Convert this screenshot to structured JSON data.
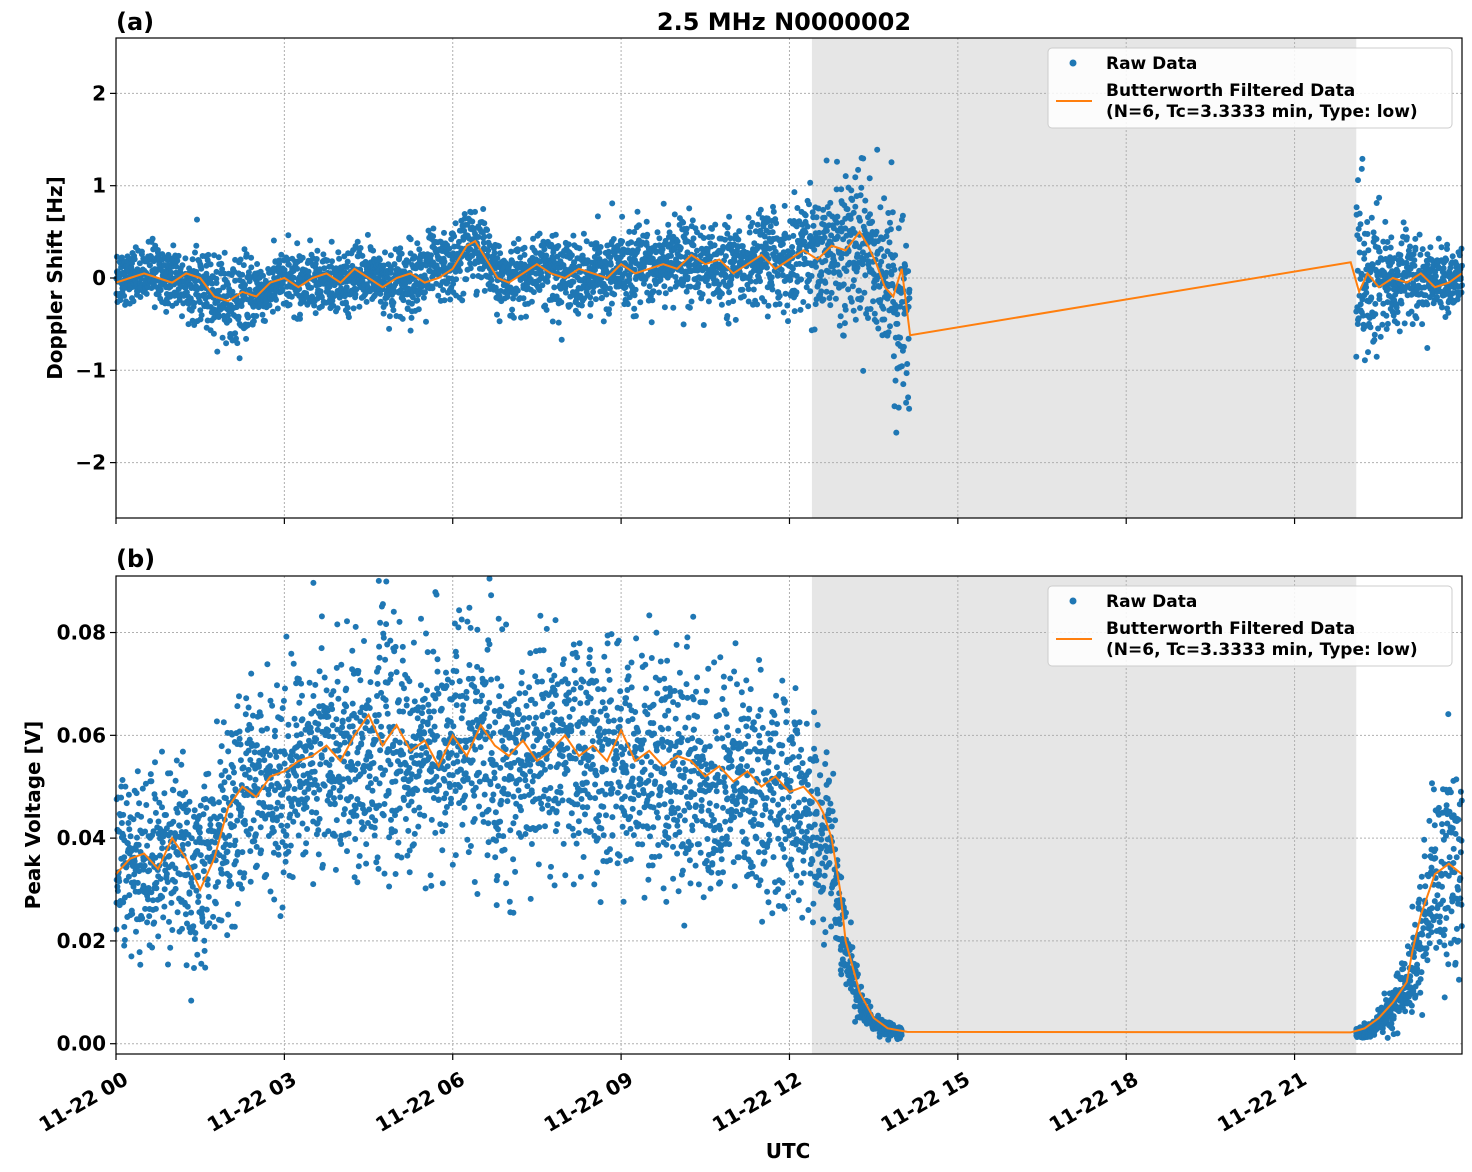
{
  "figure": {
    "title": "2.5 MHz N0000002",
    "xlabel": "UTC"
  },
  "colors": {
    "raw": "#1f77b4",
    "filtered": "#ff7f0e",
    "shade": "#e6e6e6",
    "grid": "#b0b0b0"
  },
  "chart_data": [
    {
      "type": "scatter",
      "panel_label": "(a)",
      "ylabel": "Doppler Shift [Hz]",
      "xlim": [
        "11-22 00:00",
        "11-22 23:59"
      ],
      "ylim": [
        -2.6,
        2.6
      ],
      "yticks": [
        -2,
        -1,
        0,
        1,
        2
      ],
      "ytick_labels": [
        "−2",
        "−1",
        "0",
        "1",
        "2"
      ],
      "xticks": [
        "11-22 00",
        "11-22 03",
        "11-22 06",
        "11-22 09",
        "11-22 12",
        "11-22 15",
        "11-22 18",
        "11-22 21"
      ],
      "grid": true,
      "legend_position": "top-right",
      "shaded_region": [
        "11-22 12:24",
        "11-22 22:06"
      ],
      "series": [
        {
          "name": "Raw Data",
          "kind": "scatter",
          "x_hours": [
            0,
            0.5,
            1,
            1.5,
            2,
            2.5,
            3,
            3.5,
            4,
            4.5,
            5,
            5.5,
            6,
            6.25,
            6.5,
            6.75,
            7,
            7.5,
            8,
            8.5,
            9,
            9.5,
            10,
            10.5,
            11,
            11.5,
            12,
            12.5,
            13,
            13.25,
            13.5,
            13.75,
            14,
            14.15,
            22.1,
            22.25,
            22.5,
            22.75,
            23,
            23.25,
            23.5,
            23.75,
            23.98
          ],
          "y": [
            0,
            0.05,
            0.0,
            -0.1,
            -0.25,
            -0.15,
            -0.05,
            0.0,
            -0.1,
            0.05,
            -0.05,
            0.05,
            0.15,
            0.4,
            0.3,
            0.05,
            -0.05,
            0.1,
            0.05,
            0.0,
            0.15,
            0.1,
            0.2,
            0.15,
            0.05,
            0.25,
            0.2,
            0.3,
            0.35,
            0.45,
            0.3,
            0.0,
            -0.25,
            -0.5,
            0.15,
            -0.1,
            0.05,
            -0.05,
            0.1,
            -0.1,
            0.0,
            -0.05,
            0.05
          ],
          "spread": [
            0.3,
            0.3,
            0.3,
            0.35,
            0.4,
            0.3,
            0.3,
            0.3,
            0.3,
            0.3,
            0.35,
            0.35,
            0.35,
            0.45,
            0.4,
            0.35,
            0.35,
            0.35,
            0.35,
            0.35,
            0.4,
            0.4,
            0.4,
            0.4,
            0.4,
            0.45,
            0.5,
            0.6,
            0.7,
            0.75,
            0.8,
            0.9,
            1.1,
            1.2,
            1.0,
            0.8,
            0.6,
            0.5,
            0.45,
            0.4,
            0.35,
            0.3,
            0.3
          ]
        },
        {
          "name": "Butterworth Filtered Data\n(N=6, Tc=3.3333 min, Type: low)",
          "kind": "line",
          "x_hours": [
            0,
            0.25,
            0.5,
            0.75,
            1,
            1.25,
            1.5,
            1.75,
            2,
            2.25,
            2.5,
            2.75,
            3,
            3.25,
            3.5,
            3.75,
            4,
            4.25,
            4.5,
            4.75,
            5,
            5.25,
            5.5,
            5.75,
            6,
            6.25,
            6.4,
            6.6,
            6.8,
            7,
            7.25,
            7.5,
            7.75,
            8,
            8.25,
            8.5,
            8.75,
            9,
            9.25,
            9.5,
            9.75,
            10,
            10.25,
            10.5,
            10.75,
            11,
            11.25,
            11.5,
            11.75,
            12,
            12.25,
            12.5,
            12.75,
            13,
            13.25,
            13.4,
            13.55,
            13.7,
            13.85,
            14.0,
            14.15,
            22.0,
            22.15,
            22.3,
            22.5,
            22.75,
            23,
            23.25,
            23.5,
            23.75,
            23.98
          ],
          "y": [
            -0.05,
            0.0,
            0.05,
            0.0,
            -0.05,
            0.05,
            0.0,
            -0.2,
            -0.25,
            -0.15,
            -0.2,
            -0.05,
            0.0,
            -0.1,
            0.0,
            0.05,
            -0.05,
            0.1,
            0.0,
            -0.1,
            0.0,
            0.05,
            -0.05,
            0.0,
            0.1,
            0.35,
            0.4,
            0.2,
            0.0,
            -0.05,
            0.05,
            0.15,
            0.05,
            0.0,
            0.1,
            0.05,
            0.0,
            0.15,
            0.05,
            0.1,
            0.15,
            0.1,
            0.25,
            0.15,
            0.2,
            0.05,
            0.15,
            0.25,
            0.1,
            0.2,
            0.3,
            0.2,
            0.35,
            0.3,
            0.5,
            0.35,
            0.15,
            -0.1,
            -0.2,
            0.1,
            -0.62,
            0.17,
            -0.15,
            0.05,
            -0.1,
            0.0,
            -0.05,
            0.05,
            -0.1,
            -0.05,
            0.05
          ]
        }
      ]
    },
    {
      "type": "scatter",
      "panel_label": "(b)",
      "ylabel": "Peak Voltage [V]",
      "xlim": [
        "11-22 00:00",
        "11-22 23:59"
      ],
      "ylim": [
        -0.002,
        0.091
      ],
      "yticks": [
        0.0,
        0.02,
        0.04,
        0.06,
        0.08
      ],
      "ytick_labels": [
        "0.00",
        "0.02",
        "0.04",
        "0.06",
        "0.08"
      ],
      "xticks": [
        "11-22 00",
        "11-22 03",
        "11-22 06",
        "11-22 09",
        "11-22 12",
        "11-22 15",
        "11-22 18",
        "11-22 21"
      ],
      "grid": true,
      "legend_position": "top-right",
      "shaded_region": [
        "11-22 12:24",
        "11-22 22:06"
      ],
      "series": [
        {
          "name": "Raw Data",
          "kind": "scatter",
          "x_hours": [
            0,
            0.5,
            1,
            1.5,
            2,
            2.5,
            3,
            3.5,
            4,
            4.5,
            5,
            5.5,
            6,
            6.5,
            7,
            7.5,
            8,
            8.5,
            9,
            9.5,
            10,
            10.5,
            11,
            11.5,
            12,
            12.5,
            12.75,
            13,
            13.25,
            13.5,
            13.75,
            14.0,
            22.1,
            22.3,
            22.5,
            22.75,
            23,
            23.25,
            23.5,
            23.75,
            23.98
          ],
          "y": [
            0.035,
            0.035,
            0.037,
            0.033,
            0.045,
            0.05,
            0.052,
            0.055,
            0.057,
            0.058,
            0.056,
            0.057,
            0.058,
            0.057,
            0.056,
            0.055,
            0.056,
            0.056,
            0.055,
            0.054,
            0.053,
            0.051,
            0.05,
            0.048,
            0.048,
            0.042,
            0.035,
            0.018,
            0.008,
            0.004,
            0.003,
            0.002,
            0.002,
            0.0025,
            0.004,
            0.007,
            0.012,
            0.02,
            0.03,
            0.033,
            0.035
          ],
          "spread": [
            0.016,
            0.016,
            0.016,
            0.016,
            0.018,
            0.018,
            0.018,
            0.019,
            0.02,
            0.02,
            0.02,
            0.02,
            0.02,
            0.02,
            0.02,
            0.02,
            0.02,
            0.02,
            0.02,
            0.02,
            0.02,
            0.019,
            0.019,
            0.019,
            0.019,
            0.017,
            0.013,
            0.008,
            0.004,
            0.002,
            0.0012,
            0.001,
            0.001,
            0.0015,
            0.002,
            0.004,
            0.007,
            0.011,
            0.015,
            0.016,
            0.016
          ]
        },
        {
          "name": "Butterworth Filtered Data\n(N=6, Tc=3.3333 min, Type: low)",
          "kind": "line",
          "x_hours": [
            0,
            0.25,
            0.5,
            0.75,
            1,
            1.25,
            1.5,
            1.75,
            2,
            2.25,
            2.5,
            2.75,
            3,
            3.25,
            3.5,
            3.75,
            4,
            4.25,
            4.5,
            4.75,
            5,
            5.25,
            5.5,
            5.75,
            6,
            6.25,
            6.5,
            6.75,
            7,
            7.25,
            7.5,
            7.75,
            8,
            8.25,
            8.5,
            8.75,
            9,
            9.25,
            9.5,
            9.75,
            10,
            10.25,
            10.5,
            10.75,
            11,
            11.25,
            11.5,
            11.75,
            12,
            12.25,
            12.5,
            12.6,
            12.75,
            12.9,
            13.0,
            13.25,
            13.5,
            13.75,
            14.0,
            14.1,
            22.0,
            22.25,
            22.5,
            22.75,
            23,
            23.1,
            23.25,
            23.5,
            23.75,
            23.98
          ],
          "y": [
            0.033,
            0.036,
            0.037,
            0.034,
            0.04,
            0.036,
            0.03,
            0.036,
            0.046,
            0.05,
            0.048,
            0.052,
            0.053,
            0.055,
            0.056,
            0.058,
            0.055,
            0.06,
            0.064,
            0.058,
            0.062,
            0.057,
            0.059,
            0.054,
            0.06,
            0.056,
            0.062,
            0.058,
            0.056,
            0.059,
            0.055,
            0.057,
            0.06,
            0.056,
            0.058,
            0.055,
            0.061,
            0.055,
            0.057,
            0.054,
            0.056,
            0.055,
            0.052,
            0.054,
            0.051,
            0.053,
            0.05,
            0.052,
            0.049,
            0.05,
            0.047,
            0.045,
            0.04,
            0.03,
            0.02,
            0.01,
            0.005,
            0.003,
            0.0025,
            0.0023,
            0.0022,
            0.003,
            0.005,
            0.008,
            0.012,
            0.018,
            0.025,
            0.033,
            0.035,
            0.033
          ]
        }
      ]
    }
  ]
}
